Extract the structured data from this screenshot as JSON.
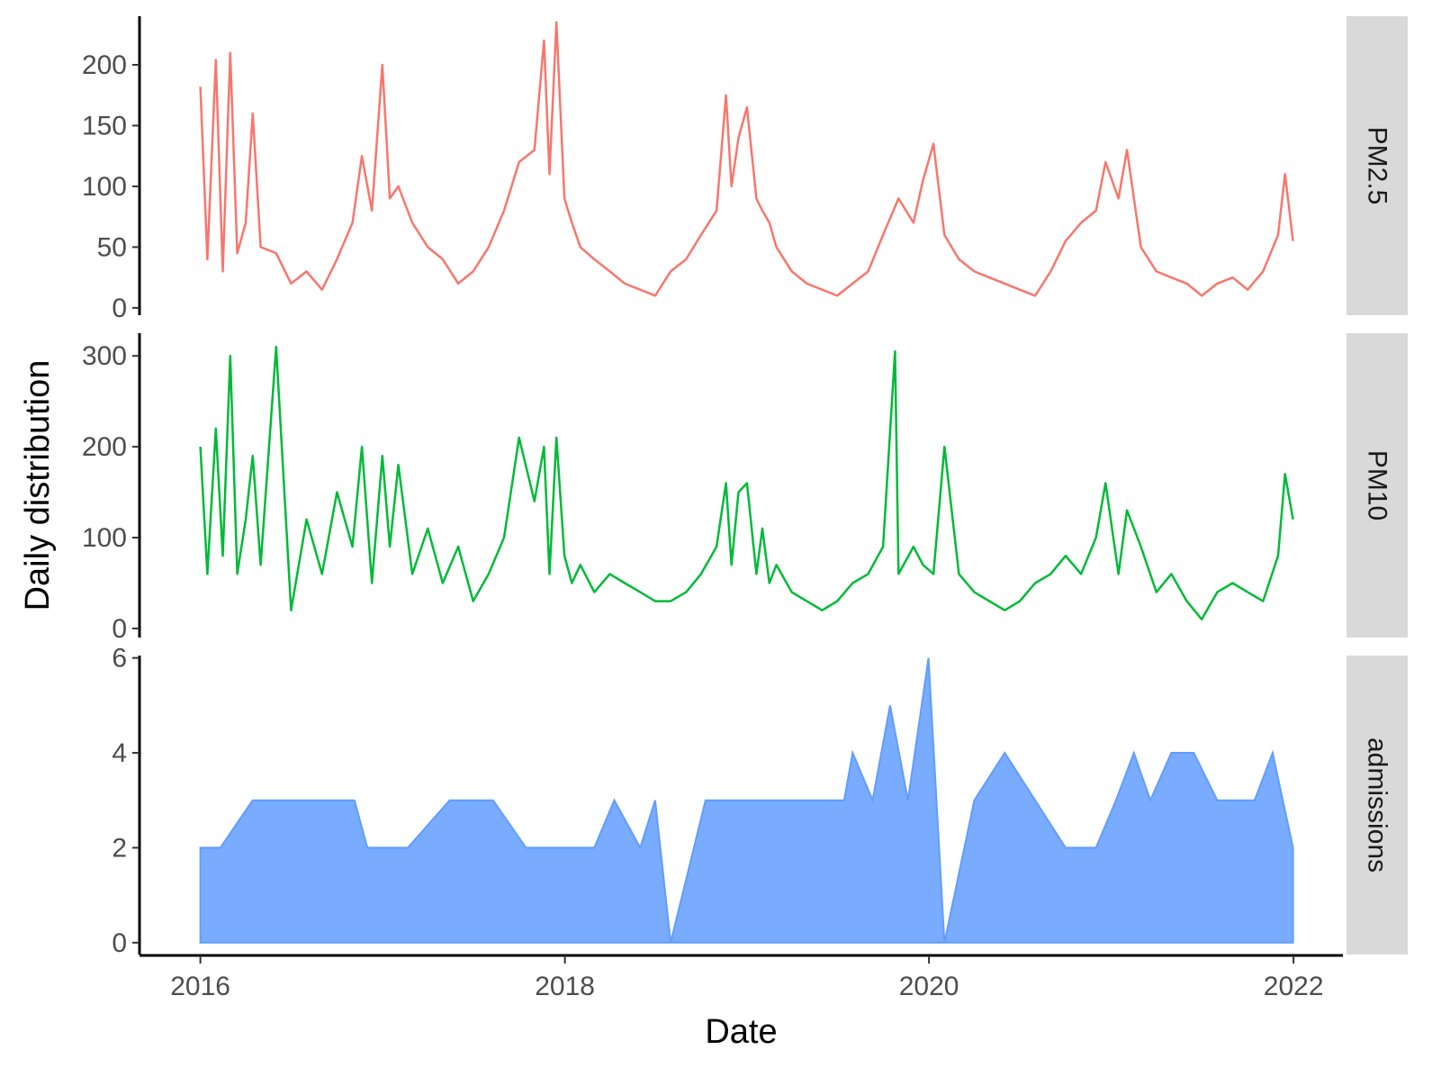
{
  "chart_data": {
    "type": "line",
    "xlabel": "Date",
    "ylabel": "Daily distribution",
    "x_axis": {
      "ticks": [
        "2016-01-01",
        "2018-01-01",
        "2020-01-01",
        "2022-01-01"
      ],
      "tick_labels": [
        "2016",
        "2018",
        "2020",
        "2022"
      ],
      "range": [
        "2015-09-01",
        "2022-04-10"
      ]
    },
    "grid": false,
    "legend": "none",
    "facets": [
      {
        "strip_label": "PM2.5",
        "color": "#F8766D",
        "ylim": [
          -6,
          240
        ],
        "yticks": [
          0,
          50,
          100,
          150,
          200
        ],
        "ytick_labels": [
          "0",
          "50",
          "100",
          "150",
          "200"
        ],
        "series": {
          "x": [
            "2016-01-01",
            "2016-01-15",
            "2016-02-01",
            "2016-02-15",
            "2016-03-01",
            "2016-03-15",
            "2016-04-01",
            "2016-04-15",
            "2016-05-01",
            "2016-06-01",
            "2016-07-01",
            "2016-08-01",
            "2016-09-01",
            "2016-10-01",
            "2016-11-01",
            "2016-11-20",
            "2016-12-10",
            "2016-12-31",
            "2017-01-15",
            "2017-02-01",
            "2017-03-01",
            "2017-04-01",
            "2017-05-01",
            "2017-06-01",
            "2017-07-01",
            "2017-08-01",
            "2017-09-01",
            "2017-10-01",
            "2017-11-01",
            "2017-11-20",
            "2017-12-01",
            "2017-12-15",
            "2017-12-31",
            "2018-01-15",
            "2018-02-01",
            "2018-03-01",
            "2018-04-01",
            "2018-05-01",
            "2018-06-01",
            "2018-07-01",
            "2018-08-01",
            "2018-09-01",
            "2018-10-01",
            "2018-11-01",
            "2018-11-20",
            "2018-12-01",
            "2018-12-15",
            "2019-01-01",
            "2019-01-20",
            "2019-02-01",
            "2019-02-15",
            "2019-03-01",
            "2019-04-01",
            "2019-05-01",
            "2019-06-01",
            "2019-07-01",
            "2019-08-01",
            "2019-09-01",
            "2019-10-01",
            "2019-11-01",
            "2019-12-01",
            "2019-12-20",
            "2020-01-10",
            "2020-02-01",
            "2020-03-01",
            "2020-04-01",
            "2020-05-01",
            "2020-06-01",
            "2020-07-01",
            "2020-08-01",
            "2020-09-01",
            "2020-10-01",
            "2020-11-01",
            "2020-12-01",
            "2020-12-20",
            "2021-01-15",
            "2021-02-01",
            "2021-03-01",
            "2021-04-01",
            "2021-05-01",
            "2021-06-01",
            "2021-07-01",
            "2021-08-01",
            "2021-09-01",
            "2021-10-01",
            "2021-11-01",
            "2021-12-01",
            "2021-12-15",
            "2021-12-31"
          ],
          "y": [
            182,
            40,
            204,
            30,
            210,
            45,
            70,
            160,
            50,
            45,
            20,
            30,
            15,
            40,
            70,
            125,
            80,
            200,
            90,
            100,
            70,
            50,
            40,
            20,
            30,
            50,
            80,
            120,
            130,
            220,
            110,
            235,
            90,
            70,
            50,
            40,
            30,
            20,
            15,
            10,
            30,
            40,
            60,
            80,
            175,
            100,
            140,
            165,
            90,
            80,
            70,
            50,
            30,
            20,
            15,
            10,
            20,
            30,
            60,
            90,
            70,
            105,
            135,
            60,
            40,
            30,
            25,
            20,
            15,
            10,
            30,
            55,
            70,
            80,
            120,
            90,
            130,
            50,
            30,
            25,
            20,
            10,
            20,
            25,
            15,
            30,
            60,
            110,
            55
          ]
        }
      },
      {
        "strip_label": "PM10",
        "color": "#00BA38",
        "ylim": [
          -10,
          325
        ],
        "yticks": [
          0,
          100,
          200,
          300
        ],
        "ytick_labels": [
          "0",
          "100",
          "200",
          "300"
        ],
        "series": {
          "x": [
            "2016-01-01",
            "2016-01-15",
            "2016-02-01",
            "2016-02-15",
            "2016-03-01",
            "2016-03-15",
            "2016-04-01",
            "2016-04-15",
            "2016-05-01",
            "2016-06-01",
            "2016-07-01",
            "2016-08-01",
            "2016-09-01",
            "2016-10-01",
            "2016-11-01",
            "2016-11-20",
            "2016-12-10",
            "2016-12-31",
            "2017-01-15",
            "2017-02-01",
            "2017-03-01",
            "2017-04-01",
            "2017-05-01",
            "2017-06-01",
            "2017-07-01",
            "2017-08-01",
            "2017-09-01",
            "2017-10-01",
            "2017-11-01",
            "2017-11-20",
            "2017-12-01",
            "2017-12-15",
            "2017-12-31",
            "2018-01-15",
            "2018-02-01",
            "2018-03-01",
            "2018-04-01",
            "2018-05-01",
            "2018-06-01",
            "2018-07-01",
            "2018-08-01",
            "2018-09-01",
            "2018-10-01",
            "2018-11-01",
            "2018-11-20",
            "2018-12-01",
            "2018-12-15",
            "2019-01-01",
            "2019-01-20",
            "2019-02-01",
            "2019-02-15",
            "2019-03-01",
            "2019-04-01",
            "2019-05-01",
            "2019-06-01",
            "2019-07-01",
            "2019-08-01",
            "2019-09-01",
            "2019-10-01",
            "2019-10-25",
            "2019-11-01",
            "2019-12-01",
            "2019-12-20",
            "2020-01-10",
            "2020-02-01",
            "2020-03-01",
            "2020-04-01",
            "2020-05-01",
            "2020-06-01",
            "2020-07-01",
            "2020-08-01",
            "2020-09-01",
            "2020-10-01",
            "2020-11-01",
            "2020-12-01",
            "2020-12-20",
            "2021-01-15",
            "2021-02-01",
            "2021-03-01",
            "2021-04-01",
            "2021-05-01",
            "2021-06-01",
            "2021-07-01",
            "2021-08-01",
            "2021-09-01",
            "2021-10-01",
            "2021-11-01",
            "2021-12-01",
            "2021-12-15",
            "2021-12-31"
          ],
          "y": [
            200,
            60,
            220,
            80,
            300,
            60,
            120,
            190,
            70,
            310,
            20,
            120,
            60,
            150,
            90,
            200,
            50,
            190,
            90,
            180,
            60,
            110,
            50,
            90,
            30,
            60,
            100,
            210,
            140,
            200,
            60,
            210,
            80,
            50,
            70,
            40,
            60,
            50,
            40,
            30,
            30,
            40,
            60,
            90,
            160,
            70,
            150,
            160,
            60,
            110,
            50,
            70,
            40,
            30,
            20,
            30,
            50,
            60,
            90,
            305,
            60,
            90,
            70,
            60,
            200,
            60,
            40,
            30,
            20,
            30,
            50,
            60,
            80,
            60,
            100,
            160,
            60,
            130,
            90,
            40,
            60,
            30,
            10,
            40,
            50,
            40,
            30,
            80,
            170,
            120
          ]
        }
      },
      {
        "strip_label": "admissions",
        "color": "#619CFF",
        "ylim": [
          -0.25,
          6.05
        ],
        "yticks": [
          0,
          2,
          4,
          6
        ],
        "ytick_labels": [
          "0",
          "2",
          "4",
          "6"
        ],
        "series": {
          "x": [
            "2016-01-01",
            "2016-02-10",
            "2016-04-15",
            "2016-06-20",
            "2016-08-25",
            "2016-11-05",
            "2016-12-01",
            "2017-02-20",
            "2017-05-15",
            "2017-06-20",
            "2017-08-10",
            "2017-10-15",
            "2017-11-20",
            "2018-03-01",
            "2018-04-10",
            "2018-06-01",
            "2018-07-01",
            "2018-08-01",
            "2018-10-10",
            "2018-12-01",
            "2019-02-10",
            "2019-04-01",
            "2019-06-01",
            "2019-07-15",
            "2019-08-01",
            "2019-09-10",
            "2019-10-15",
            "2019-11-20",
            "2019-12-31",
            "2020-02-01",
            "2020-04-01",
            "2020-06-01",
            "2020-08-01",
            "2020-10-01",
            "2020-12-01",
            "2021-01-10",
            "2021-02-15",
            "2021-03-20",
            "2021-05-01",
            "2021-06-15",
            "2021-08-01",
            "2021-09-10",
            "2021-10-15",
            "2021-11-20",
            "2021-12-31"
          ],
          "y": [
            2,
            2,
            3,
            3,
            3,
            3,
            2,
            2,
            3,
            3,
            3,
            2,
            2,
            2,
            3,
            2,
            3,
            0,
            3,
            3,
            3,
            3,
            3,
            3,
            4,
            3,
            5,
            3,
            6,
            0,
            3,
            4,
            3,
            2,
            2,
            3,
            4,
            3,
            4,
            4,
            3,
            3,
            3,
            4,
            2
          ]
        }
      }
    ]
  }
}
